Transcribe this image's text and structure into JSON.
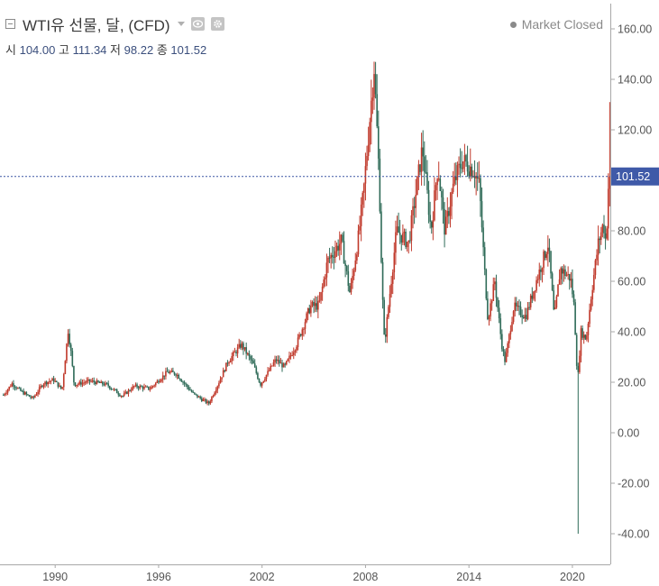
{
  "header": {
    "title": "WTI유 선물, 달, (CFD)",
    "status": "Market Closed",
    "ohlc": [
      {
        "label": "시",
        "value": "104.00"
      },
      {
        "label": "고",
        "value": "111.34"
      },
      {
        "label": "저",
        "value": "98.22"
      },
      {
        "label": "종",
        "value": "101.52"
      }
    ]
  },
  "colors": {
    "up": "#c0392b",
    "down": "#2f6b58",
    "price_line": "#3b56a3",
    "price_tag_bg": "#3f5aa8",
    "axis_line": "#a8a8a8",
    "axis_text": "#555555"
  },
  "chart_data": {
    "type": "candlestick",
    "title": "WTI유 선물, 달, (CFD)",
    "interval": "monthly",
    "y_ticks": [
      160,
      140,
      120,
      100,
      80,
      60,
      40,
      20,
      0,
      -20,
      -40
    ],
    "y_tick_labels": [
      "160.00",
      "140.00",
      "120.00",
      "",
      "80.00",
      "60.00",
      "40.00",
      "20.00",
      "0.00",
      "-20.00",
      "-40.00"
    ],
    "ylim": [
      -50,
      162
    ],
    "x_ticks": [
      1990,
      1996,
      2002,
      2008,
      2014,
      2020
    ],
    "xlim": [
      1986.8,
      2022.2
    ],
    "last_price": 101.52,
    "last_price_label": "101.52",
    "series": [
      {
        "name": "WTI",
        "points": [
          [
            1987.0,
            15.0
          ],
          [
            1987.5,
            19.5
          ],
          [
            1988.0,
            16.5
          ],
          [
            1988.7,
            13.5
          ],
          [
            1989.3,
            19.5
          ],
          [
            1989.9,
            21.0
          ],
          [
            1990.4,
            17.0
          ],
          [
            1990.75,
            40.5
          ],
          [
            1990.9,
            33.0
          ],
          [
            1991.1,
            19.0
          ],
          [
            1992.0,
            20.5
          ],
          [
            1993.0,
            19.0
          ],
          [
            1993.9,
            14.5
          ],
          [
            1994.6,
            18.5
          ],
          [
            1995.5,
            17.5
          ],
          [
            1996.5,
            24.0
          ],
          [
            1997.0,
            23.5
          ],
          [
            1998.0,
            15.5
          ],
          [
            1998.9,
            11.5
          ],
          [
            1999.5,
            20.0
          ],
          [
            2000.0,
            28.0
          ],
          [
            2000.8,
            35.0
          ],
          [
            2001.5,
            27.0
          ],
          [
            2001.9,
            19.0
          ],
          [
            2002.8,
            29.0
          ],
          [
            2003.3,
            26.0
          ],
          [
            2004.0,
            35.0
          ],
          [
            2004.8,
            50.0
          ],
          [
            2005.3,
            50.5
          ],
          [
            2005.8,
            68.0
          ],
          [
            2006.6,
            76.0
          ],
          [
            2007.1,
            55.0
          ],
          [
            2007.6,
            78.0
          ],
          [
            2007.9,
            96.0
          ],
          [
            2008.5,
            145.0
          ],
          [
            2008.8,
            100.0
          ],
          [
            2008.95,
            60.0
          ],
          [
            2009.1,
            35.0
          ],
          [
            2009.8,
            80.0
          ],
          [
            2010.5,
            75.0
          ],
          [
            2011.3,
            113.0
          ],
          [
            2011.8,
            80.0
          ],
          [
            2012.2,
            106.0
          ],
          [
            2012.6,
            80.0
          ],
          [
            2013.1,
            98.0
          ],
          [
            2013.6,
            108.0
          ],
          [
            2014.3,
            104.0
          ],
          [
            2014.6,
            98.0
          ],
          [
            2014.9,
            65.0
          ],
          [
            2015.1,
            45.0
          ],
          [
            2015.5,
            60.0
          ],
          [
            2015.9,
            35.0
          ],
          [
            2016.1,
            28.0
          ],
          [
            2016.6,
            50.0
          ],
          [
            2017.3,
            46.0
          ],
          [
            2017.9,
            60.0
          ],
          [
            2018.6,
            75.0
          ],
          [
            2018.95,
            45.0
          ],
          [
            2019.3,
            65.0
          ],
          [
            2019.9,
            61.0
          ],
          [
            2020.1,
            50.0
          ],
          [
            2020.3,
            20.0
          ],
          [
            2020.5,
            40.0
          ],
          [
            2020.8,
            37.0
          ],
          [
            2021.1,
            55.0
          ],
          [
            2021.5,
            75.0
          ],
          [
            2021.8,
            83.0
          ],
          [
            2021.95,
            75.0
          ],
          [
            2022.1,
            100.0
          ],
          [
            2022.2,
            101.52
          ]
        ]
      }
    ]
  }
}
